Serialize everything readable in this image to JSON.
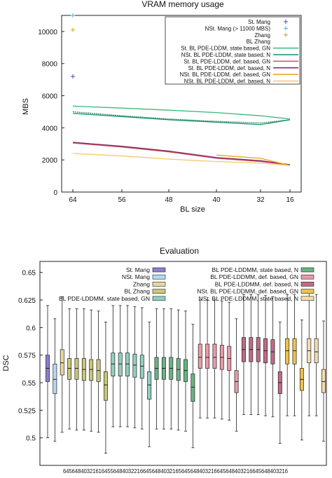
{
  "chart_data": [
    {
      "type": "line",
      "title": "VRAM memory usage",
      "xlabel": "BL size",
      "ylabel": "MBS",
      "x_reversed": true,
      "xlim": [
        68,
        14
      ],
      "ylim": [
        0,
        11000
      ],
      "x_ticks": [
        64,
        56,
        48,
        40,
        32,
        16
      ],
      "y_ticks": [
        0,
        2000,
        4000,
        6000,
        8000,
        10000
      ],
      "series": [
        {
          "name": "St. Mang",
          "style": "point",
          "marker": "+",
          "color": "#5a3fb0",
          "x": [
            64
          ],
          "y": [
            7200
          ]
        },
        {
          "name": "NSt. Mang (> 11000 MBS)",
          "style": "point",
          "marker": "+",
          "color": "#36b5e0",
          "x": [
            64
          ],
          "y": [
            11000
          ]
        },
        {
          "name": "Zhang",
          "style": "point",
          "marker": "+",
          "color": "#d4a418",
          "x": [
            64
          ],
          "y": [
            10100
          ]
        },
        {
          "name": "BL Zhang",
          "style": "line",
          "color": "#2f8a5a",
          "dashed": true,
          "x": [
            64,
            56,
            48,
            40,
            32,
            16
          ],
          "y": [
            5000,
            4750,
            4550,
            4400,
            4300,
            4500
          ]
        },
        {
          "name": "St. BL PDE-LDDM, state based, GN",
          "style": "line",
          "color": "#3cb878",
          "x": [
            64,
            56,
            48,
            40,
            32,
            16
          ],
          "y": [
            5350,
            5230,
            5100,
            4950,
            4750,
            4550
          ]
        },
        {
          "name": "NSt. BL PDE-LDDM, state based, N",
          "style": "line",
          "color": "#158e6e",
          "x": [
            64,
            56,
            48,
            40,
            32,
            16
          ],
          "y": [
            4900,
            4700,
            4500,
            4350,
            4200,
            4500
          ]
        },
        {
          "name": "St. BL PDE-LDDM, def. based, GN",
          "style": "line",
          "color": "#d05068",
          "x": [
            64,
            56,
            48,
            40,
            32,
            16
          ],
          "y": [
            3050,
            2800,
            2500,
            2100,
            1900,
            1700
          ]
        },
        {
          "name": "St. BL PDE-LDDM, def. based, N",
          "style": "line",
          "color": "#7a2a5c",
          "x": [
            64,
            56,
            48,
            40,
            32,
            16
          ],
          "y": [
            3100,
            2850,
            2550,
            2150,
            1950,
            1700
          ]
        },
        {
          "name": "NSt. BL PDE-LDDM, def. based, GN",
          "style": "line",
          "color": "#eaa21c",
          "x": [
            40,
            32,
            16
          ],
          "y": [
            2300,
            2100,
            1650
          ]
        },
        {
          "name": "NSt. BL PDE-LDDM, def. based, N",
          "style": "line",
          "color": "#f2c870",
          "x": [
            64,
            56,
            48,
            40,
            32,
            16
          ],
          "y": [
            2400,
            2250,
            2050,
            1900,
            1800,
            1650
          ]
        }
      ]
    },
    {
      "type": "box",
      "title": "Evaluation",
      "ylabel": "DSC",
      "ylim": [
        0.475,
        0.66
      ],
      "y_ticks": [
        0.5,
        0.525,
        0.55,
        0.575,
        0.6,
        0.625,
        0.65
      ],
      "x_tick_label_text": "6456484032161645564840322166456484032165645648403216645648403216645648403216",
      "legend_left": [
        {
          "name": "St. Mang",
          "color": "#8a7fd0"
        },
        {
          "name": "NSt. Mang",
          "color": "#b8d8f4"
        },
        {
          "name": "Zhang",
          "color": "#e4d8a0"
        },
        {
          "name": "BL Zhang",
          "color": "#c9c77a"
        },
        {
          "name": "BL PDE-LDDMM, state based, GN",
          "color": "#92cfc0"
        }
      ],
      "legend_right": [
        {
          "name": "BL PDE-LDDMM, state based, N",
          "color": "#6bb384"
        },
        {
          "name": "BL PDE-LDDMM, def. based, GN",
          "color": "#e89aa8"
        },
        {
          "name": "BL PDE-LDDMM, def. based, N",
          "color": "#c06a88"
        },
        {
          "name": "NSt. BL PDE-LDDMM, def. based, GN",
          "color": "#eec050"
        },
        {
          "name": "NSt. BL PDE-LDDMM, state based, N",
          "color": "#f4dcae"
        }
      ],
      "boxes": [
        {
          "group": "St. Mang",
          "color": "#8a7fd0",
          "wlo": 0.5,
          "q1": 0.551,
          "med": 0.563,
          "q3": 0.575,
          "whi": 0.62
        },
        {
          "group": "NSt. Mang",
          "color": "#b8d8f4",
          "wlo": 0.497,
          "q1": 0.54,
          "med": 0.553,
          "q3": 0.567,
          "whi": 0.608
        },
        {
          "group": "Zhang",
          "color": "#e4d8a0",
          "wlo": 0.505,
          "q1": 0.557,
          "med": 0.568,
          "q3": 0.58,
          "whi": 0.628
        },
        {
          "group": "BL Zhang",
          "color": "#c9c77a",
          "wlo": 0.508,
          "q1": 0.553,
          "med": 0.563,
          "q3": 0.572,
          "whi": 0.617
        },
        {
          "group": "BL Zhang",
          "color": "#c9c77a",
          "wlo": 0.507,
          "q1": 0.553,
          "med": 0.563,
          "q3": 0.572,
          "whi": 0.617
        },
        {
          "group": "BL Zhang",
          "color": "#c9c77a",
          "wlo": 0.507,
          "q1": 0.552,
          "med": 0.562,
          "q3": 0.572,
          "whi": 0.617
        },
        {
          "group": "BL Zhang",
          "color": "#c9c77a",
          "wlo": 0.506,
          "q1": 0.552,
          "med": 0.562,
          "q3": 0.571,
          "whi": 0.616
        },
        {
          "group": "BL Zhang",
          "color": "#c9c77a",
          "wlo": 0.505,
          "q1": 0.551,
          "med": 0.561,
          "q3": 0.571,
          "whi": 0.615
        },
        {
          "group": "BL Zhang",
          "color": "#c9c77a",
          "wlo": 0.486,
          "q1": 0.534,
          "med": 0.548,
          "q3": 0.56,
          "whi": 0.605
        },
        {
          "group": "BL PDE-LDDMM, state based, GN",
          "color": "#92cfc0",
          "wlo": 0.51,
          "q1": 0.556,
          "med": 0.567,
          "q3": 0.577,
          "whi": 0.62
        },
        {
          "group": "BL PDE-LDDMM, state based, GN",
          "color": "#92cfc0",
          "wlo": 0.51,
          "q1": 0.556,
          "med": 0.567,
          "q3": 0.577,
          "whi": 0.62
        },
        {
          "group": "BL PDE-LDDMM, state based, GN",
          "color": "#92cfc0",
          "wlo": 0.51,
          "q1": 0.556,
          "med": 0.567,
          "q3": 0.577,
          "whi": 0.62
        },
        {
          "group": "BL PDE-LDDMM, state based, GN",
          "color": "#92cfc0",
          "wlo": 0.509,
          "q1": 0.555,
          "med": 0.566,
          "q3": 0.576,
          "whi": 0.619
        },
        {
          "group": "BL PDE-LDDMM, state based, GN",
          "color": "#92cfc0",
          "wlo": 0.508,
          "q1": 0.554,
          "med": 0.565,
          "q3": 0.575,
          "whi": 0.618
        },
        {
          "group": "BL PDE-LDDMM, state based, GN",
          "color": "#92cfc0",
          "wlo": 0.492,
          "q1": 0.535,
          "med": 0.548,
          "q3": 0.56,
          "whi": 0.605
        },
        {
          "group": "BL PDE-LDDMM, state based, N",
          "color": "#6bb384",
          "wlo": 0.508,
          "q1": 0.553,
          "med": 0.563,
          "q3": 0.573,
          "whi": 0.617
        },
        {
          "group": "BL PDE-LDDMM, state based, N",
          "color": "#6bb384",
          "wlo": 0.508,
          "q1": 0.553,
          "med": 0.563,
          "q3": 0.573,
          "whi": 0.617
        },
        {
          "group": "BL PDE-LDDMM, state based, N",
          "color": "#6bb384",
          "wlo": 0.508,
          "q1": 0.553,
          "med": 0.563,
          "q3": 0.573,
          "whi": 0.617
        },
        {
          "group": "BL PDE-LDDMM, state based, N",
          "color": "#6bb384",
          "wlo": 0.507,
          "q1": 0.552,
          "med": 0.562,
          "q3": 0.572,
          "whi": 0.616
        },
        {
          "group": "BL PDE-LDDMM, state based, N",
          "color": "#6bb384",
          "wlo": 0.506,
          "q1": 0.551,
          "med": 0.561,
          "q3": 0.571,
          "whi": 0.615
        },
        {
          "group": "BL PDE-LDDMM, state based, N",
          "color": "#6bb384",
          "wlo": 0.491,
          "q1": 0.533,
          "med": 0.546,
          "q3": 0.558,
          "whi": 0.603
        },
        {
          "group": "BL PDE-LDDMM, def. based, GN",
          "color": "#e89aa8",
          "wlo": 0.518,
          "q1": 0.563,
          "med": 0.573,
          "q3": 0.585,
          "whi": 0.625
        },
        {
          "group": "BL PDE-LDDMM, def. based, GN",
          "color": "#e89aa8",
          "wlo": 0.518,
          "q1": 0.563,
          "med": 0.573,
          "q3": 0.585,
          "whi": 0.625
        },
        {
          "group": "BL PDE-LDDMM, def. based, GN",
          "color": "#e89aa8",
          "wlo": 0.518,
          "q1": 0.563,
          "med": 0.573,
          "q3": 0.585,
          "whi": 0.625
        },
        {
          "group": "BL PDE-LDDMM, def. based, GN",
          "color": "#e89aa8",
          "wlo": 0.517,
          "q1": 0.562,
          "med": 0.573,
          "q3": 0.584,
          "whi": 0.624
        },
        {
          "group": "BL PDE-LDDMM, def. based, GN",
          "color": "#e89aa8",
          "wlo": 0.516,
          "q1": 0.561,
          "med": 0.572,
          "q3": 0.583,
          "whi": 0.623
        },
        {
          "group": "BL PDE-LDDMM, def. based, GN",
          "color": "#e89aa8",
          "wlo": 0.506,
          "q1": 0.541,
          "med": 0.551,
          "q3": 0.561,
          "whi": 0.608
        },
        {
          "group": "BL PDE-LDDMM, def. based, N",
          "color": "#c06a88",
          "wlo": 0.521,
          "q1": 0.569,
          "med": 0.58,
          "q3": 0.591,
          "whi": 0.63
        },
        {
          "group": "BL PDE-LDDMM, def. based, N",
          "color": "#c06a88",
          "wlo": 0.521,
          "q1": 0.569,
          "med": 0.58,
          "q3": 0.591,
          "whi": 0.63
        },
        {
          "group": "BL PDE-LDDMM, def. based, N",
          "color": "#c06a88",
          "wlo": 0.521,
          "q1": 0.569,
          "med": 0.58,
          "q3": 0.591,
          "whi": 0.63
        },
        {
          "group": "BL PDE-LDDMM, def. based, N",
          "color": "#c06a88",
          "wlo": 0.52,
          "q1": 0.568,
          "med": 0.579,
          "q3": 0.59,
          "whi": 0.629
        },
        {
          "group": "BL PDE-LDDMM, def. based, N",
          "color": "#c06a88",
          "wlo": 0.519,
          "q1": 0.567,
          "med": 0.578,
          "q3": 0.589,
          "whi": 0.628
        },
        {
          "group": "BL PDE-LDDMM, def. based, N",
          "color": "#c06a88",
          "wlo": 0.495,
          "q1": 0.54,
          "med": 0.55,
          "q3": 0.56,
          "whi": 0.605
        },
        {
          "group": "NSt. BL PDE-LDDMM, def. based, GN",
          "color": "#eec050",
          "wlo": 0.52,
          "q1": 0.567,
          "med": 0.579,
          "q3": 0.59,
          "whi": 0.63
        },
        {
          "group": "NSt. BL PDE-LDDMM, def. based, GN",
          "color": "#eec050",
          "wlo": 0.52,
          "q1": 0.567,
          "med": 0.579,
          "q3": 0.59,
          "whi": 0.63
        },
        {
          "group": "NSt. BL PDE-LDDMM, def. based, GN",
          "color": "#eec050",
          "wlo": 0.498,
          "q1": 0.543,
          "med": 0.553,
          "q3": 0.563,
          "whi": 0.607
        },
        {
          "group": "NSt. BL PDE-LDDMM, state based, N",
          "color": "#f4dcae",
          "wlo": 0.52,
          "q1": 0.568,
          "med": 0.579,
          "q3": 0.59,
          "whi": 0.632
        },
        {
          "group": "NSt. BL PDE-LDDMM, state based, N",
          "color": "#f4dcae",
          "wlo": 0.52,
          "q1": 0.568,
          "med": 0.578,
          "q3": 0.59,
          "whi": 0.63
        },
        {
          "group": "NSt. BL PDE-LDDMM, state based, N",
          "color": "#f4dcae",
          "wlo": 0.497,
          "q1": 0.541,
          "med": 0.551,
          "q3": 0.562,
          "whi": 0.606
        }
      ]
    }
  ]
}
